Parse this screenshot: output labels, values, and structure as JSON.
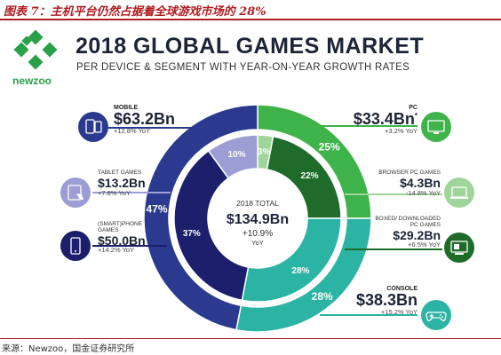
{
  "figure_title": "图表 7：主机平台仍然占据着全球游戏市场的 28%",
  "source_text": "来源：Newzoo，国金证券研究所",
  "brand": {
    "name": "newzoo",
    "color": "#2aa04a"
  },
  "header": {
    "title": "2018 GLOBAL GAMES MARKET",
    "subtitle": "PER DEVICE & SEGMENT WITH YEAR-ON-YEAR GROWTH RATES"
  },
  "center": {
    "label": "2018 TOTAL",
    "value": "$134.9Bn",
    "growth": "+10.9%",
    "growth_unit": "YoY"
  },
  "segments": {
    "mobile": {
      "name": "MOBILE",
      "value": "$63.2Bn",
      "yoy": "+12.8% YoY",
      "color": "#2b3a8f"
    },
    "tablet": {
      "name": "TABLET GAMES",
      "value": "$13.2Bn",
      "yoy": "+7.8% YoY",
      "color": "#9b9dd3"
    },
    "phone": {
      "name": "(SMART)PHONE GAMES",
      "value": "$50.0Bn",
      "yoy": "+14.2% YoY",
      "color": "#1c1f6b"
    },
    "pc": {
      "name": "PC",
      "value": "$33.4Bn",
      "footnote": "*",
      "yoy": "+3.2% YoY",
      "color": "#3db34a"
    },
    "browser": {
      "name": "BROWSER PC GAMES",
      "value": "$4.3Bn",
      "yoy": "-14.8% YoY",
      "color": "#9fd59a"
    },
    "boxed": {
      "name": "BOXED/ DOWNLOADED PC GAMES",
      "value": "$29.2Bn",
      "yoy": "+6.5% YoY",
      "color": "#1f6b2a"
    },
    "console": {
      "name": "CONSOLE",
      "value": "$38.3Bn",
      "yoy": "+15.2% YoY",
      "color": "#2bb3a3"
    }
  },
  "chart_data": {
    "type": "pie",
    "unit": "%",
    "outer_ring": [
      {
        "name": "PC",
        "value": 25,
        "label": "25%",
        "color": "#3db34a"
      },
      {
        "name": "CONSOLE",
        "value": 28,
        "label": "28%",
        "color": "#2bb3a3"
      },
      {
        "name": "MOBILE",
        "value": 47,
        "label": "47%",
        "color": "#2b3a8f"
      }
    ],
    "inner_ring": [
      {
        "name": "BROWSER PC GAMES",
        "value": 3,
        "label": "3%",
        "color": "#9fd59a"
      },
      {
        "name": "BOXED/ DOWNLOADED PC GAMES",
        "value": 22,
        "label": "22%",
        "color": "#1f6b2a"
      },
      {
        "name": "CONSOLE",
        "value": 28,
        "label": "28%",
        "color": "#2bb3a3"
      },
      {
        "name": "(SMART)PHONE GAMES",
        "value": 37,
        "label": "37%",
        "color": "#1c1f6b"
      },
      {
        "name": "TABLET GAMES",
        "value": 10,
        "label": "10%",
        "color": "#9b9dd3"
      }
    ]
  }
}
